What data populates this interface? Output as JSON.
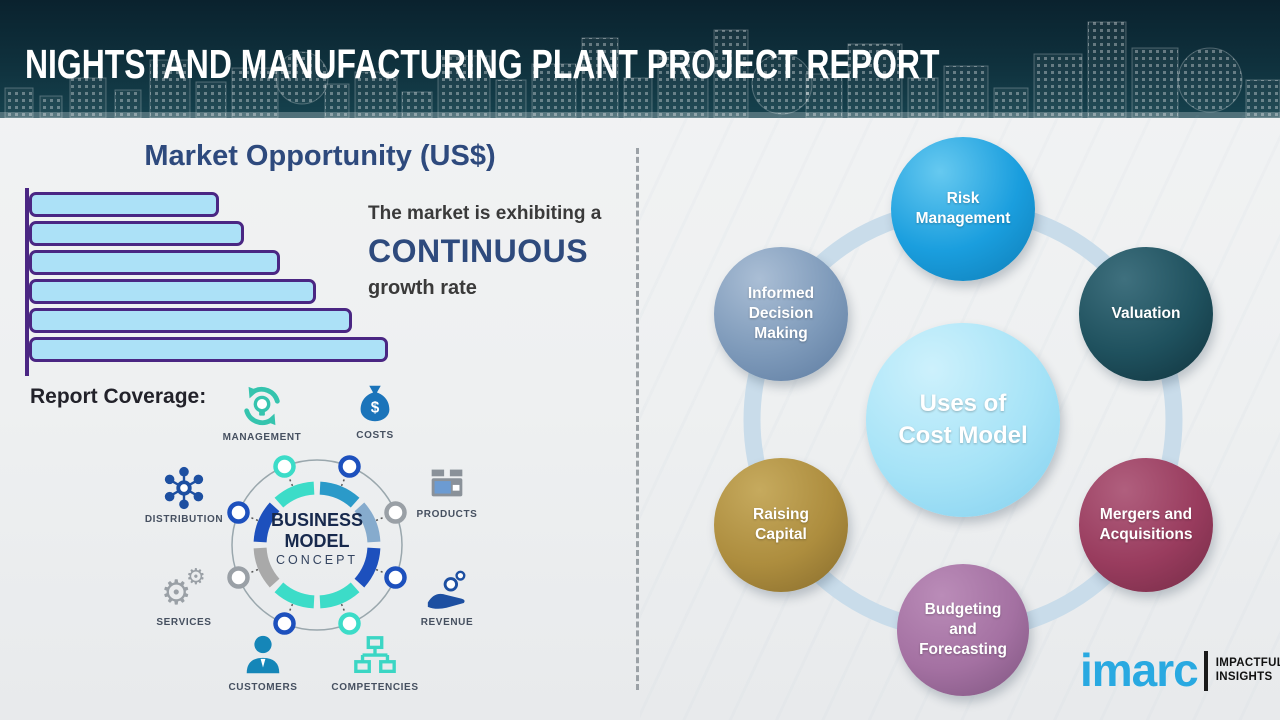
{
  "header": {
    "title": "NIGHTSTAND MANUFACTURING PLANT PROJECT REPORT"
  },
  "chart_data": {
    "type": "bar",
    "orientation": "horizontal",
    "title": "Market Opportunity (US$)",
    "categories": [
      "",
      "",
      "",
      "",
      "",
      ""
    ],
    "values_relative_pct": [
      53,
      60,
      70,
      80,
      90,
      100
    ],
    "axis_tick_labels": "none",
    "annotation": "The market is exhibiting a CONTINUOUS growth rate",
    "bar_fill": "#ace1f7",
    "bar_border": "#4a2683",
    "legend": "none",
    "grid": "off"
  },
  "left_panel": {
    "chart_title": "Market Opportunity (US$)",
    "growth_line1": "The market is exhibiting a",
    "growth_highlight": "CONTINUOUS",
    "growth_line2": "growth rate",
    "report_coverage_label": "Report Coverage:",
    "business_model": {
      "center_lines": [
        "BUSINESS",
        "MODEL"
      ],
      "center_sub": "CONCEPT",
      "items": [
        {
          "label": "MANAGEMENT"
        },
        {
          "label": "COSTS"
        },
        {
          "label": "DISTRIBUTION"
        },
        {
          "label": "PRODUCTS"
        },
        {
          "label": "SERVICES"
        },
        {
          "label": "REVENUE"
        },
        {
          "label": "CUSTOMERS"
        },
        {
          "label": "COMPETENCIES"
        }
      ]
    }
  },
  "right_panel": {
    "center_node": {
      "label": "Uses of Cost Model",
      "lines": [
        "Uses of",
        "Cost Model"
      ],
      "colors": {
        "light": "#cdf1fc",
        "base": "#a6e3f7",
        "dark": "#82cfee"
      }
    },
    "nodes": [
      {
        "label": "Risk Management",
        "lines": [
          "Risk",
          "Management"
        ],
        "colors": {
          "light": "#66c9f0",
          "base": "#1a9ede",
          "dark": "#0e7cb5"
        }
      },
      {
        "label": "Informed Decision Making",
        "lines": [
          "Informed",
          "Decision",
          "Making"
        ],
        "colors": {
          "light": "#aabed5",
          "base": "#7e9aba",
          "dark": "#5d7ba0"
        }
      },
      {
        "label": "Valuation",
        "lines": [
          "Valuation"
        ],
        "colors": {
          "light": "#3f707e",
          "base": "#1f515e",
          "dark": "#10323c"
        }
      },
      {
        "label": "Raising Capital",
        "lines": [
          "Raising",
          "Capital"
        ],
        "colors": {
          "light": "#c6aa5e",
          "base": "#ad8d3e",
          "dark": "#866b2c"
        }
      },
      {
        "label": "Mergers and Acquisitions",
        "lines": [
          "Mergers and",
          "Acquisitions"
        ],
        "colors": {
          "light": "#b05f7e",
          "base": "#993c5e",
          "dark": "#742b46"
        }
      },
      {
        "label": "Budgeting and Forecasting",
        "lines": [
          "Budgeting",
          "and",
          "Forecasting"
        ],
        "colors": {
          "light": "#ba8cb8",
          "base": "#a471a2",
          "dark": "#7e547f"
        }
      }
    ]
  },
  "logo": {
    "brand": "imarc",
    "brand_color": "#29a9e1",
    "tagline_lines": [
      "IMPACTFUL",
      "INSIGHTS"
    ]
  }
}
